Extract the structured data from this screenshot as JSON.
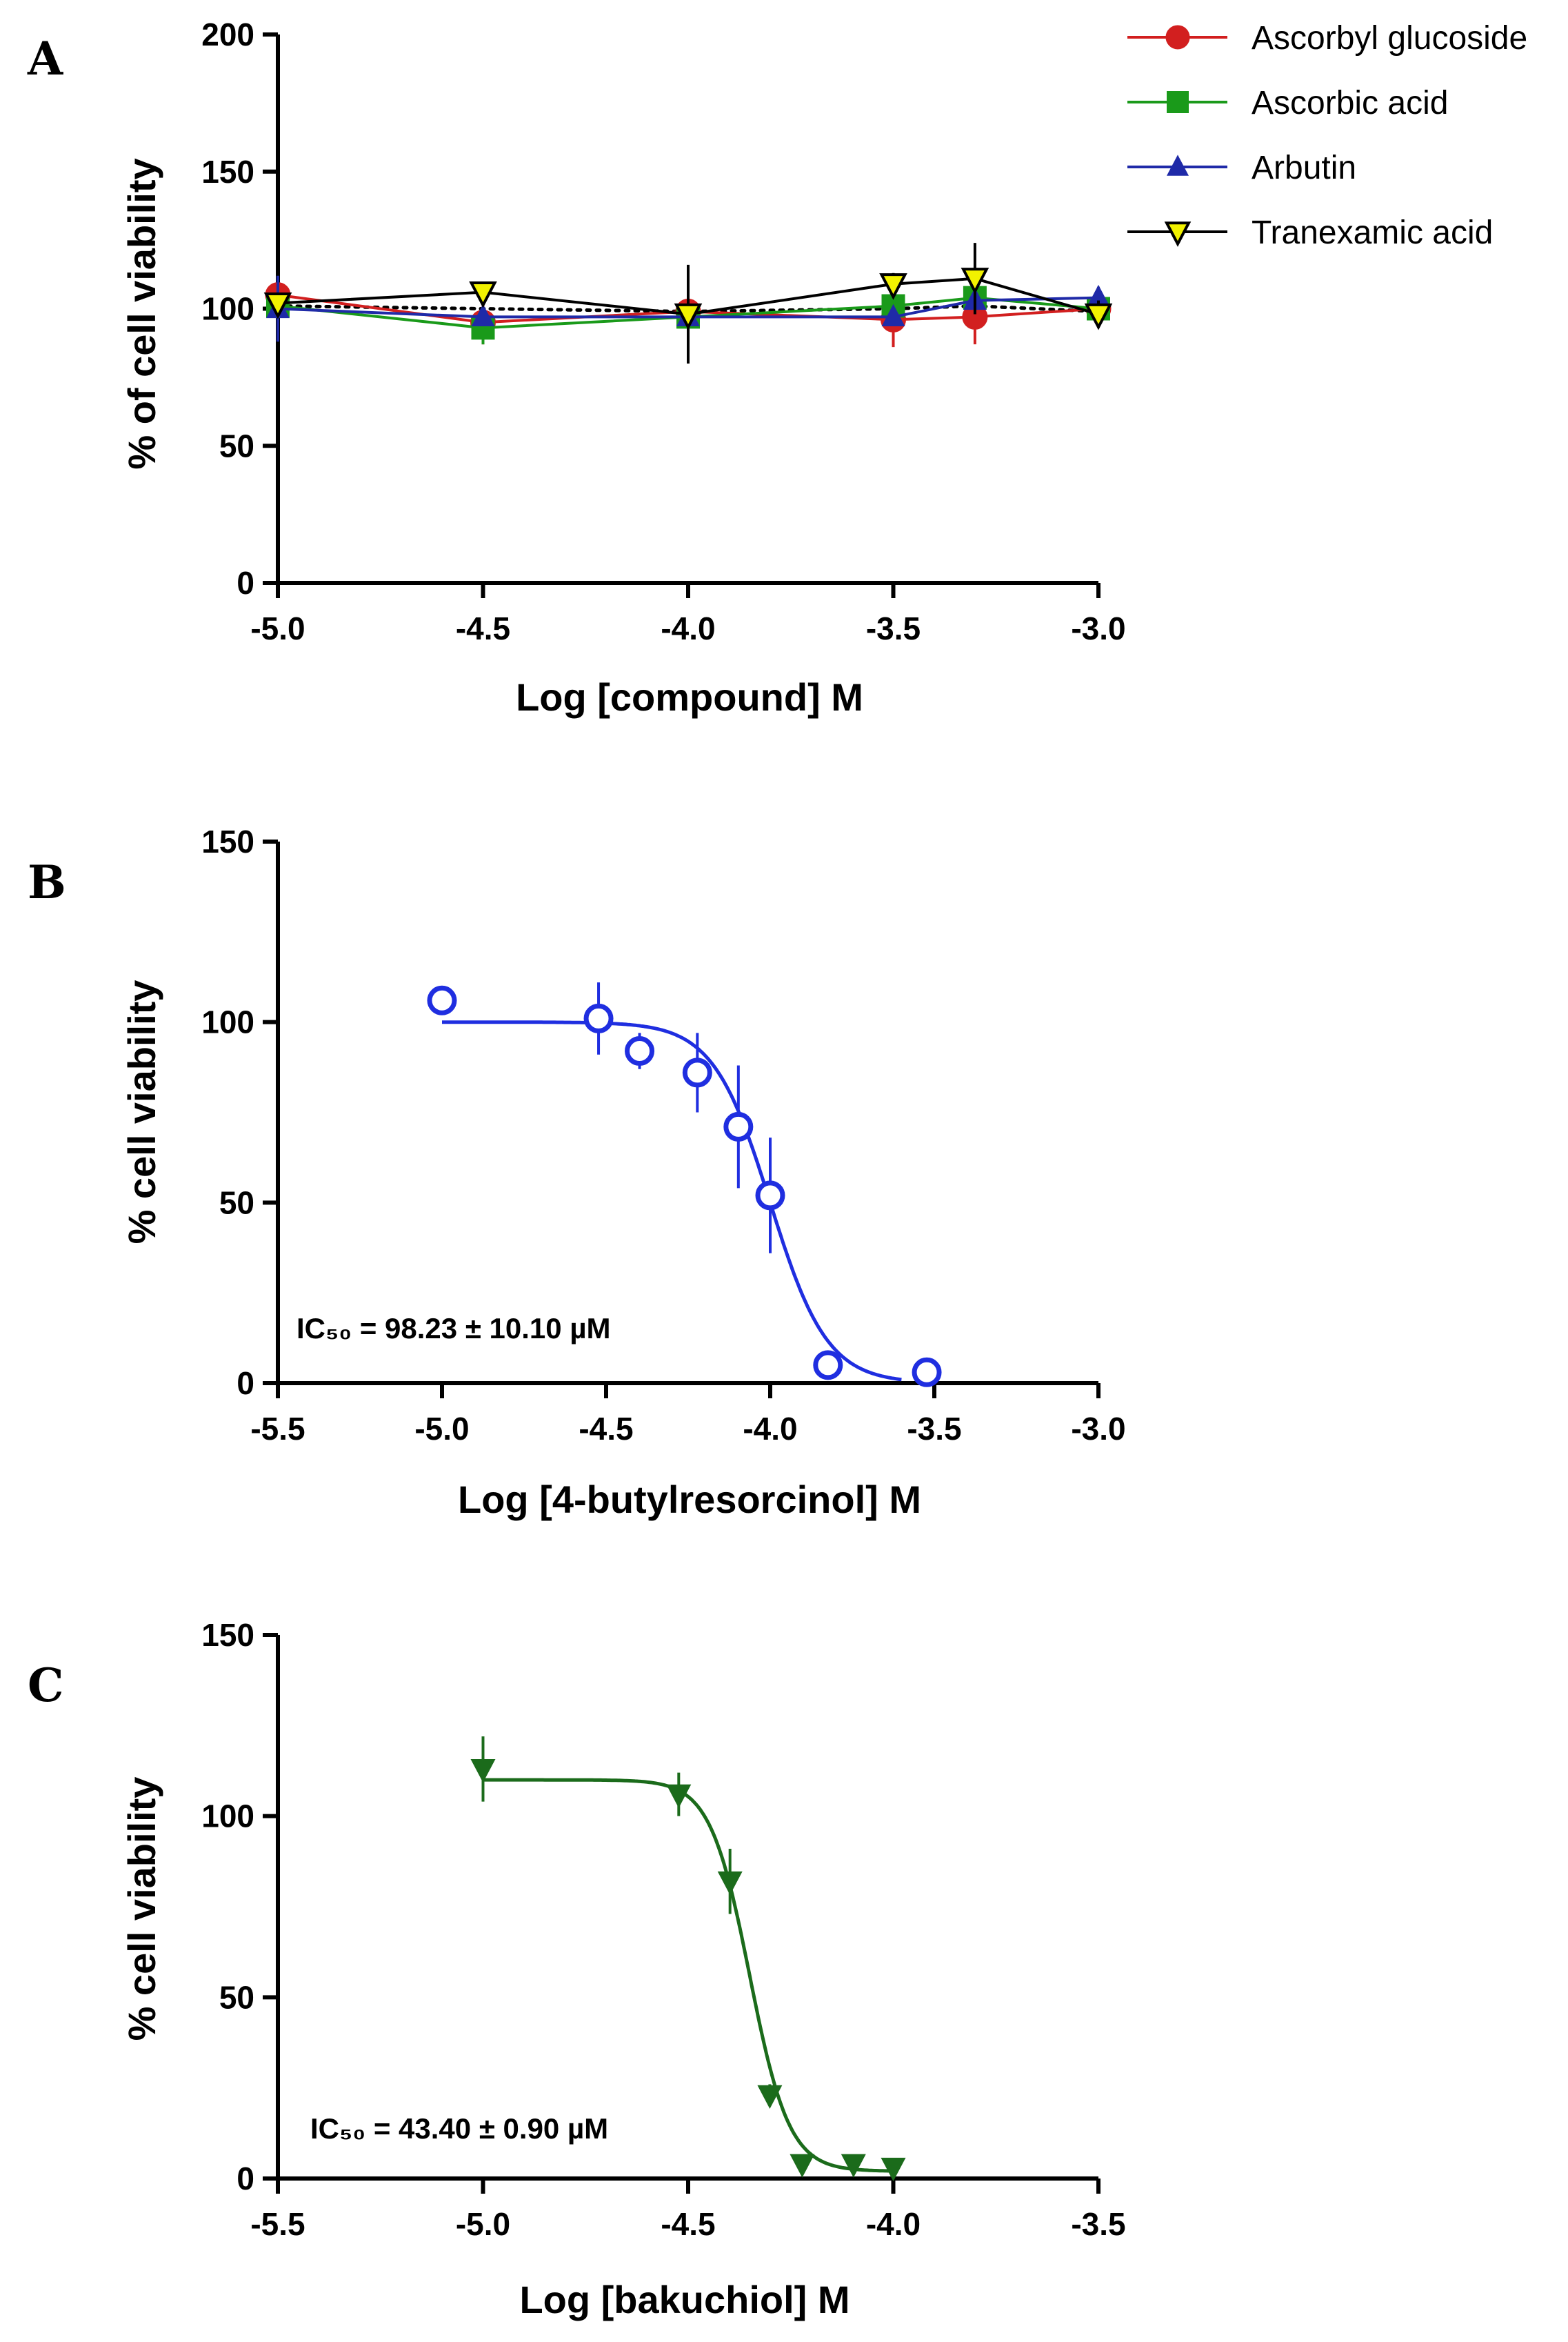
{
  "chart_data": [
    {
      "id": "A",
      "panel_label": "A",
      "type": "line",
      "xlabel": "Log [compound] M",
      "ylabel": "% of cell viability",
      "xlim": [
        -5.0,
        -3.0
      ],
      "ylim": [
        0,
        200
      ],
      "xticks": [
        -5.0,
        -4.5,
        -4.0,
        -3.5,
        -3.0
      ],
      "xtick_labels": [
        "-5.0",
        "-4.5",
        "-4.0",
        "-3.5",
        "-3.0"
      ],
      "yticks": [
        0,
        50,
        100,
        150,
        200
      ],
      "ytick_labels": [
        "0",
        "50",
        "100",
        "150",
        "200"
      ],
      "grid": false,
      "legend_position": "top-right",
      "annotation": "",
      "series": [
        {
          "name": "Ascorbyl glucoside",
          "color": "#d21f1f",
          "marker": "circle",
          "x": [
            -5.0,
            -4.5,
            -4.0,
            -3.5,
            -3.301,
            -3.0
          ],
          "y": [
            105,
            95,
            99,
            96,
            97,
            100
          ],
          "err": [
            4,
            8,
            5,
            10,
            10,
            3
          ]
        },
        {
          "name": "Ascorbic acid",
          "color": "#1a9a1a",
          "marker": "square",
          "x": [
            -5.0,
            -4.5,
            -4.0,
            -3.5,
            -3.301,
            -3.0
          ],
          "y": [
            101,
            93,
            97,
            101,
            104,
            100
          ],
          "err": [
            3,
            6,
            5,
            4,
            3,
            2
          ]
        },
        {
          "name": "Arbutin",
          "color": "#1f2aa8",
          "marker": "triangle-up",
          "x": [
            -5.0,
            -4.5,
            -4.0,
            -3.5,
            -3.301,
            -3.0
          ],
          "y": [
            100,
            97,
            97,
            97,
            103,
            104
          ],
          "err": [
            12,
            3,
            4,
            3,
            3,
            4
          ]
        },
        {
          "name": "Tranexamic acid",
          "color": "#000000",
          "fill": "#f2f200",
          "marker": "triangle-down",
          "x": [
            -5.0,
            -4.5,
            -4.0,
            -3.5,
            -3.301,
            -3.0
          ],
          "y": [
            102,
            106,
            98,
            109,
            111,
            98
          ],
          "err": [
            3,
            3,
            18,
            4,
            13,
            5
          ]
        }
      ],
      "extra_lines": [
        {
          "style": "dotted",
          "color": "#000000",
          "x": [
            -5.0,
            -4.5,
            -4.0,
            -3.5,
            -3.301,
            -3.0
          ],
          "y": [
            101,
            100,
            99,
            100,
            101,
            99
          ]
        }
      ]
    },
    {
      "id": "B",
      "panel_label": "B",
      "type": "scatter",
      "xlabel": "Log [4-butylresorcinol] M",
      "ylabel": "% cell viability",
      "xlim": [
        -5.5,
        -3.0
      ],
      "ylim": [
        0,
        150
      ],
      "xticks": [
        -5.5,
        -5.0,
        -4.5,
        -4.0,
        -3.5,
        -3.0
      ],
      "xtick_labels": [
        "-5.5",
        "-5.0",
        "-4.5",
        "-4.0",
        "-3.5",
        "-3.0"
      ],
      "yticks": [
        0,
        50,
        100,
        150
      ],
      "ytick_labels": [
        "0",
        "50",
        "100",
        "150"
      ],
      "grid": false,
      "annotation": "IC₅₀ = 98.23 ± 10.10 µM",
      "series": [
        {
          "name": "",
          "color": "#1f2ee0",
          "marker": "open-circle",
          "x": [
            -5.0,
            -4.523,
            -4.398,
            -4.222,
            -4.097,
            -4.0,
            -3.824,
            -3.523
          ],
          "y": [
            106,
            101,
            92,
            86,
            71,
            52,
            5,
            3
          ],
          "err": [
            4,
            10,
            5,
            11,
            17,
            16,
            0,
            0
          ]
        }
      ],
      "fit": {
        "color": "#1f2ee0",
        "top": 100,
        "bottom": 0,
        "logIC50": -4.0,
        "hill": 5.0,
        "x_range": [
          -5.0,
          -3.6
        ]
      }
    },
    {
      "id": "C",
      "panel_label": "C",
      "type": "scatter",
      "xlabel": "Log [bakuchiol] M",
      "ylabel": "% cell viability",
      "xlim": [
        -5.5,
        -3.5
      ],
      "ylim": [
        0,
        150
      ],
      "xticks": [
        -5.5,
        -5.0,
        -4.5,
        -4.0,
        -3.5
      ],
      "xtick_labels": [
        "-5.5",
        "-5.0",
        "-4.5",
        "-4.0",
        "-3.5"
      ],
      "yticks": [
        0,
        50,
        100,
        150
      ],
      "ytick_labels": [
        "0",
        "50",
        "100",
        "150"
      ],
      "grid": false,
      "annotation": "IC₅₀ = 43.40 ± 0.90 µM",
      "series": [
        {
          "name": "",
          "color": "#1b6b1b",
          "marker": "triangle-down",
          "x": [
            -5.0,
            -4.523,
            -4.398,
            -4.301,
            -4.222,
            -4.097,
            -4.0
          ],
          "y": [
            113,
            106,
            82,
            23,
            4,
            4,
            3
          ],
          "err": [
            9,
            6,
            9,
            3,
            0,
            0,
            0
          ]
        }
      ],
      "fit": {
        "color": "#1b6b1b",
        "top": 110,
        "bottom": 2,
        "logIC50": -4.35,
        "hill": 9.0,
        "x_range": [
          -5.0,
          -4.0
        ]
      }
    }
  ]
}
